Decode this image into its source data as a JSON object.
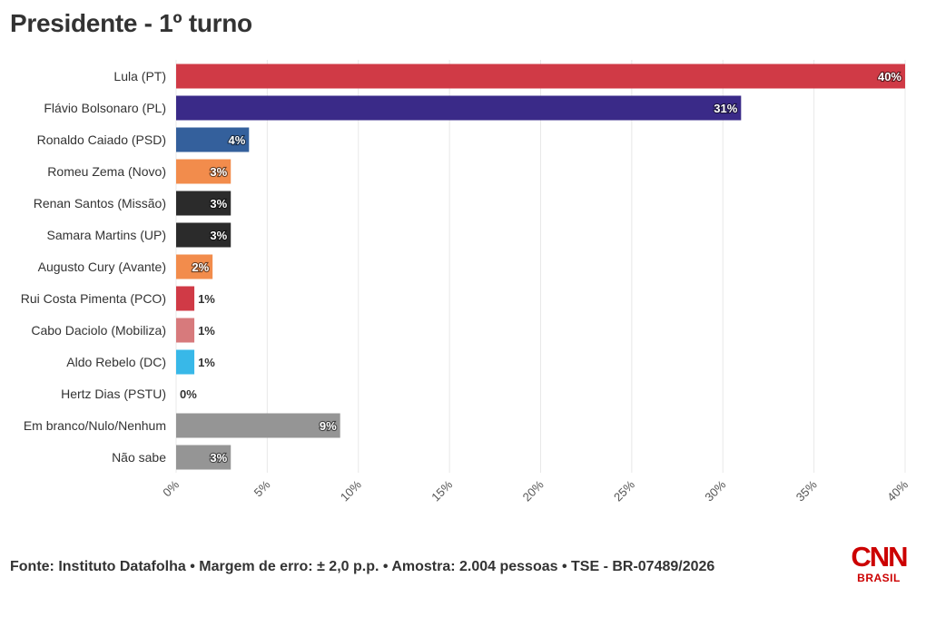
{
  "title": "Presidente - 1º turno",
  "footer": "Fonte: Instituto Datafolha • Margem de erro: ± 2,0 p.p. • Amostra: 2.004 pessoas • TSE - BR-07489/2026",
  "logo": {
    "text": "CNN",
    "subtext": "BRASIL",
    "color": "#cc0000"
  },
  "chart_data": {
    "type": "bar",
    "orientation": "horizontal",
    "categories": [
      "Lula (PT)",
      "Flávio Bolsonaro (PL)",
      "Ronaldo Caiado (PSD)",
      "Romeu Zema (Novo)",
      "Renan Santos (Missão)",
      "Samara Martins (UP)",
      "Augusto Cury (Avante)",
      "Rui Costa Pimenta (PCO)",
      "Cabo Daciolo (Mobiliza)",
      "Aldo Rebelo (DC)",
      "Hertz Dias (PSTU)",
      "Em branco/Nulo/Nenhum",
      "Não sabe"
    ],
    "values": [
      40,
      31,
      4,
      3,
      3,
      3,
      2,
      1,
      1,
      1,
      0,
      9,
      3
    ],
    "data_labels": [
      "40%",
      "31%",
      "4%",
      "3%",
      "3%",
      "3%",
      "2%",
      "1%",
      "1%",
      "1%",
      "0%",
      "9%",
      "3%"
    ],
    "colors": [
      "#d03a46",
      "#3a2a88",
      "#34609c",
      "#f28c4c",
      "#2b2b2b",
      "#2b2b2b",
      "#f28c4c",
      "#d03a46",
      "#d77a7c",
      "#38b8e8",
      "#cccccc",
      "#959595",
      "#959595"
    ],
    "xlim": [
      0,
      40
    ],
    "x_ticks": [
      0,
      5,
      10,
      15,
      20,
      25,
      30,
      35,
      40
    ],
    "x_tick_labels": [
      "0%",
      "5%",
      "10%",
      "15%",
      "20%",
      "25%",
      "30%",
      "35%",
      "40%"
    ],
    "grid": true,
    "legend": "none",
    "xlabel": "",
    "ylabel": ""
  }
}
